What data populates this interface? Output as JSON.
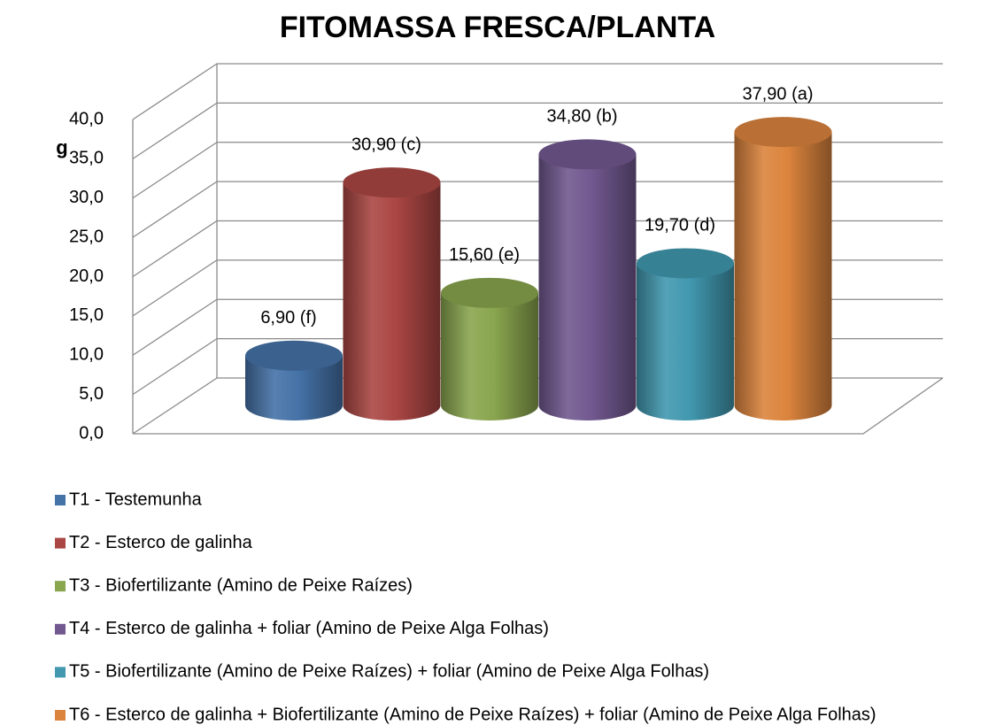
{
  "chart_data": {
    "type": "bar3d",
    "title": "FITOMASSA FRESCA/PLANTA",
    "y_label": "g",
    "ylim": [
      0,
      40
    ],
    "yticks": [
      {
        "value": 0,
        "label": "0,0"
      },
      {
        "value": 5,
        "label": "5,0"
      },
      {
        "value": 10,
        "label": "10,0"
      },
      {
        "value": 15,
        "label": "15,0"
      },
      {
        "value": 20,
        "label": "20,0"
      },
      {
        "value": 25,
        "label": "25,0"
      },
      {
        "value": 30,
        "label": "30,0"
      },
      {
        "value": 35,
        "label": "35,0"
      },
      {
        "value": 40,
        "label": "40,0"
      }
    ],
    "grid": true,
    "legend": "bottom",
    "series": [
      {
        "name": "T1 - Testemunha",
        "color": "#4572a7",
        "values": [
          6.9
        ],
        "value_labels": [
          "6,90 (f)"
        ]
      },
      {
        "name": "T2 - Esterco de galinha",
        "color": "#aa4643",
        "values": [
          30.9
        ],
        "value_labels": [
          "30,90 (c)"
        ]
      },
      {
        "name": "T3 - Biofertilizante (Amino de Peixe Raízes)",
        "color": "#89a54e",
        "values": [
          15.6
        ],
        "value_labels": [
          "15,60 (e)"
        ]
      },
      {
        "name": "T4 - Esterco de galinha + foliar (Amino de Peixe Alga Folhas)",
        "color": "#71588f",
        "values": [
          34.8
        ],
        "value_labels": [
          "34,80 (b)"
        ]
      },
      {
        "name": "T5 - Biofertilizante (Amino de Peixe Raízes) + foliar (Amino de Peixe Alga Folhas)",
        "color": "#4198af",
        "values": [
          19.7
        ],
        "value_labels": [
          "19,70 (d)"
        ]
      },
      {
        "name": "T6 - Esterco de galinha + Biofertilizante (Amino de Peixe Raízes) + foliar (Amino de Peixe Alga Folhas)",
        "color": "#db843d",
        "values": [
          37.9
        ],
        "value_labels": [
          "37,90 (a)"
        ]
      }
    ]
  }
}
